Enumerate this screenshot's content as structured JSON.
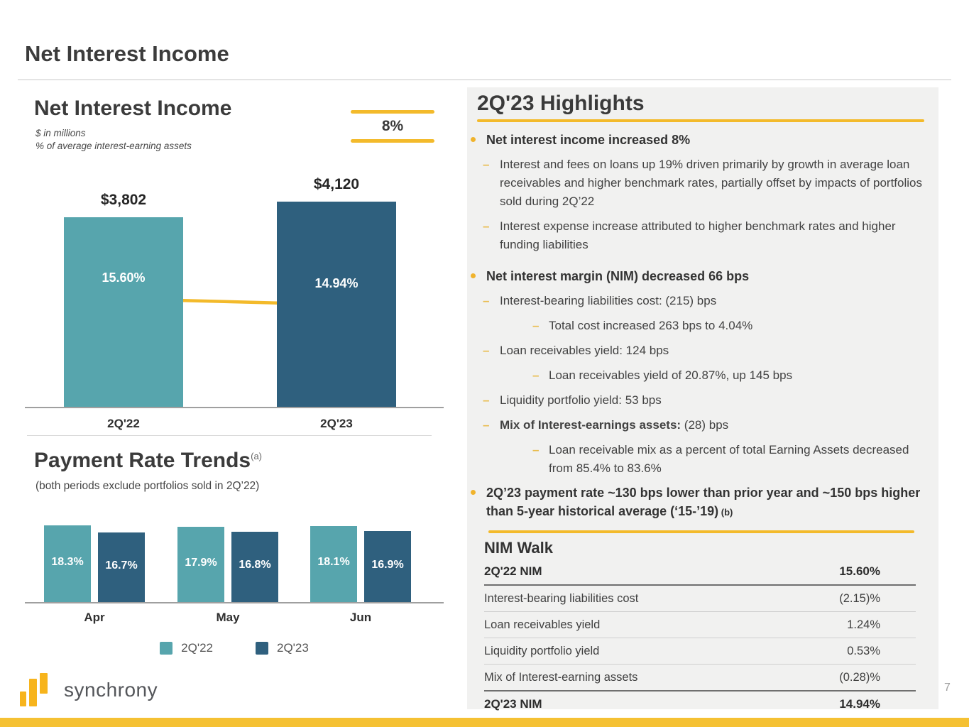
{
  "page": {
    "title": "Net Interest Income",
    "page_number": "7"
  },
  "colors": {
    "teal": "#57a5ad",
    "dark_blue": "#2f607e",
    "yellow": "#f3ba2b",
    "logo_yellow": "#f7b41c",
    "panel_bg": "#f1f1f0"
  },
  "nii_chart": {
    "heading": "Net Interest Income",
    "subtitle1": "$ in millions",
    "subtitle2": "% of average interest-earning assets",
    "change_badge": "8%"
  },
  "payment_chart": {
    "heading": "Payment Rate Trends",
    "superscript": "(a)",
    "subtitle": "(both periods exclude portfolios sold in 2Q’22)",
    "legend": [
      {
        "label": "2Q'22"
      },
      {
        "label": "2Q'23"
      }
    ]
  },
  "chart_data": [
    {
      "type": "bar",
      "title": "Net Interest Income",
      "units": "$ in millions",
      "categories": [
        "2Q'22",
        "2Q'23"
      ],
      "values": [
        3802,
        4120
      ],
      "value_labels": [
        "$3,802",
        "$4,120"
      ],
      "pct_values": [
        15.6,
        14.94
      ],
      "pct_labels": [
        "15.60%",
        "14.94%"
      ],
      "bar_colors": [
        "#57a5ad",
        "#2f607e"
      ],
      "annotation": "8%",
      "notes": "yellow trend line connects NIM% of both bars; secondary axis % of average interest-earning assets"
    },
    {
      "type": "bar",
      "title": "Payment Rate Trends",
      "categories": [
        "Apr",
        "May",
        "Jun"
      ],
      "series": [
        {
          "name": "2Q'22",
          "color": "#57a5ad",
          "values": [
            18.3,
            17.9,
            18.1
          ],
          "labels": [
            "18.3%",
            "17.9%",
            "18.1%"
          ]
        },
        {
          "name": "2Q'23",
          "color": "#2f607e",
          "values": [
            16.7,
            16.8,
            16.9
          ],
          "labels": [
            "16.7%",
            "16.8%",
            "16.9%"
          ]
        }
      ],
      "legend_position": "bottom",
      "grid": false
    }
  ],
  "highlights": {
    "title": "2Q'23 Highlights",
    "items": [
      {
        "level": 1,
        "segments": [
          {
            "text": "Net interest income increased 8%"
          }
        ]
      },
      {
        "level": 2,
        "segments": [
          {
            "text": "Interest and fees on loans up 19% driven primarily by growth in average loan receivables and higher benchmark rates, partially offset by impacts of portfolios sold during 2Q’22"
          }
        ]
      },
      {
        "level": 2,
        "segments": [
          {
            "text": "Interest expense increase attributed to higher benchmark rates and higher funding liabilities"
          }
        ]
      },
      {
        "level": 1,
        "segments": [
          {
            "text": "Net interest margin (NIM) decreased 66 bps"
          }
        ]
      },
      {
        "level": 2,
        "segments": [
          {
            "text": "Interest-bearing liabilities cost: (215) bps"
          }
        ]
      },
      {
        "level": 3,
        "segments": [
          {
            "text": "Total cost increased 263 bps to 4.04%"
          }
        ]
      },
      {
        "level": 2,
        "segments": [
          {
            "text": "Loan receivables yield: 124 bps"
          }
        ]
      },
      {
        "level": 3,
        "segments": [
          {
            "text": "Loan receivables yield of 20.87%, up 145 bps"
          }
        ]
      },
      {
        "level": 2,
        "segments": [
          {
            "text": "Liquidity portfolio yield: 53 bps"
          }
        ]
      },
      {
        "level": 2,
        "segments": [
          {
            "text": "Mix of Interest-earnings assets:",
            "bold": true
          },
          {
            "text": " (28) bps"
          }
        ]
      },
      {
        "level": 3,
        "segments": [
          {
            "text": "Loan receivable mix as a percent of total Earning Assets decreased from 85.4% to 83.6%"
          }
        ]
      },
      {
        "level": 1,
        "tight": true,
        "segments": [
          {
            "text": "2Q’23 payment rate ~130 bps lower than prior year and ~150 bps higher than 5-year historical average (‘15-’19)"
          },
          {
            "text": " (b)",
            "small": true
          }
        ]
      }
    ]
  },
  "nim_walk": {
    "title": "NIM Walk",
    "rows": [
      {
        "label": "2Q'22 NIM",
        "value": "15.60%",
        "bold": true,
        "divider": "dark"
      },
      {
        "label": "Interest-bearing liabilities cost",
        "value": "(2.15)%",
        "bold": false,
        "divider": "light"
      },
      {
        "label": "Loan receivables yield",
        "value": "1.24%",
        "bold": false,
        "divider": "light"
      },
      {
        "label": "Liquidity portfolio yield",
        "value": "0.53%",
        "bold": false,
        "divider": "light"
      },
      {
        "label": "Mix of Interest-earning assets",
        "value": "(0.28)%",
        "bold": false,
        "divider": "dark"
      },
      {
        "label": "2Q'23 NIM",
        "value": "14.94%",
        "bold": true,
        "divider": "none"
      }
    ]
  },
  "footer": {
    "logo_text": "synchrony"
  }
}
